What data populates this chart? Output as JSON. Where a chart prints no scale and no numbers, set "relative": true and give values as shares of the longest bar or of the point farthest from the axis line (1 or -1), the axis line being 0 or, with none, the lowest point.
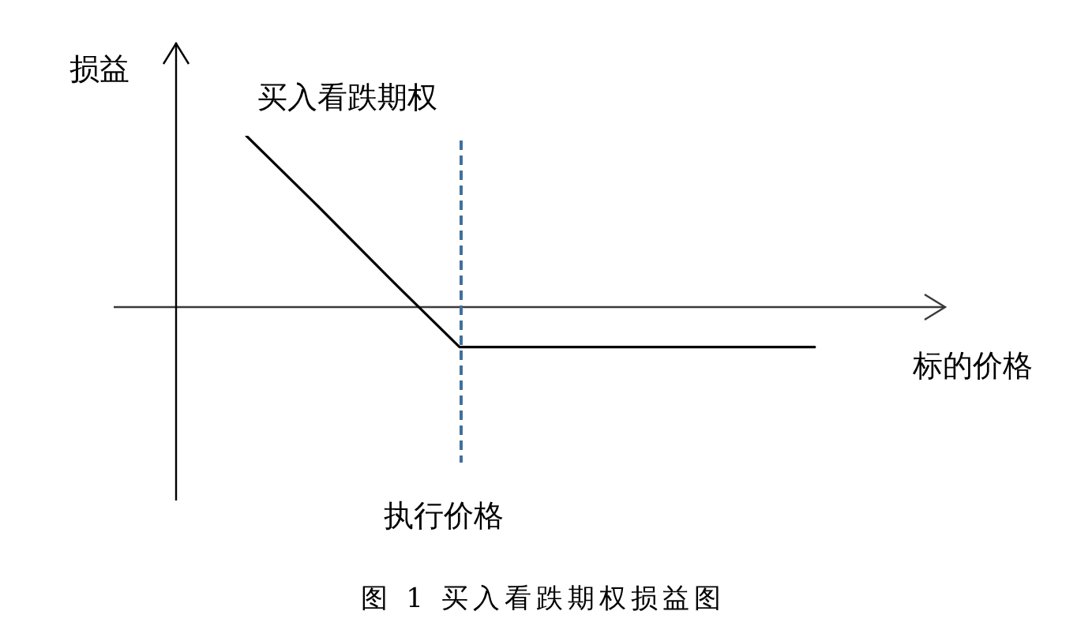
{
  "chart_data": {
    "type": "line",
    "title": "图 1 买入看跌期权损益图",
    "xlabel": "标的价格",
    "ylabel": "损益",
    "relative": true,
    "categories": [
      null,
      null,
      null,
      null,
      null,
      null,
      null,
      null,
      null,
      null
    ],
    "series": [
      {
        "name": "买入看跌期权",
        "color": "#000000",
        "values": [
          null,
          1,
          0.59,
          0.17,
          -0.24,
          -0.24,
          -0.24,
          -0.24,
          -0.24,
          -0.24
        ]
      }
    ],
    "annotations": [
      "执行价格"
    ],
    "marker": "none"
  }
}
